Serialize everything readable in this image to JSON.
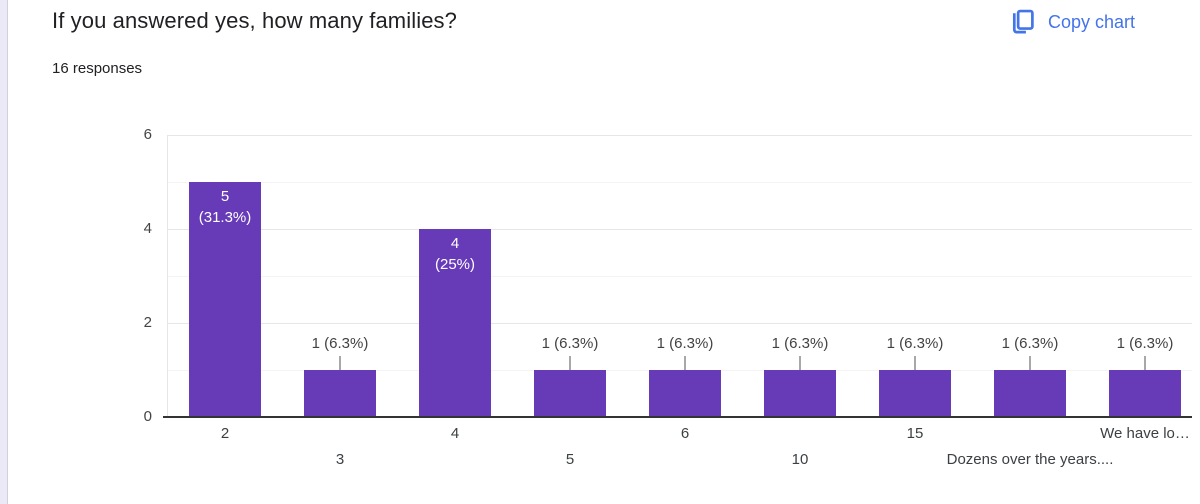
{
  "page": {
    "title": "If you answered yes, how many families?",
    "subtitle": "16 responses",
    "copy_chart_label": "Copy chart"
  },
  "colors": {
    "bar": "#673ab7",
    "link_blue": "#4374e8",
    "title_text": "#202124",
    "axis_text": "#444444",
    "annotation_text": "#424242",
    "annotation_inside_text": "#ffffff",
    "gridline_major": "#e6e6e6",
    "gridline_minor": "#f4f4f4",
    "baseline": "#333333",
    "page_edge": "#ece9f6"
  },
  "chart_data": {
    "type": "bar",
    "title": "If you answered yes, how many families?",
    "subtitle": "16 responses",
    "categories": [
      "2",
      "3",
      "4",
      "5",
      "6",
      "10",
      "15",
      "Dozens over the years....",
      "We have lo…"
    ],
    "values": [
      5,
      1,
      4,
      1,
      1,
      1,
      1,
      1,
      1
    ],
    "annotations": [
      "5 (31.3%)",
      "1 (6.3%)",
      "4 (25%)",
      "1 (6.3%)",
      "1 (6.3%)",
      "1 (6.3%)",
      "1 (6.3%)",
      "1 (6.3%)",
      "1 (6.3%)"
    ],
    "xlabel": "",
    "ylabel": "",
    "ylim": [
      0,
      6
    ],
    "yticks": [
      0,
      2,
      4,
      6
    ],
    "grid": true,
    "legend": "none",
    "bar_color": "#673ab7",
    "total_responses": 16
  }
}
